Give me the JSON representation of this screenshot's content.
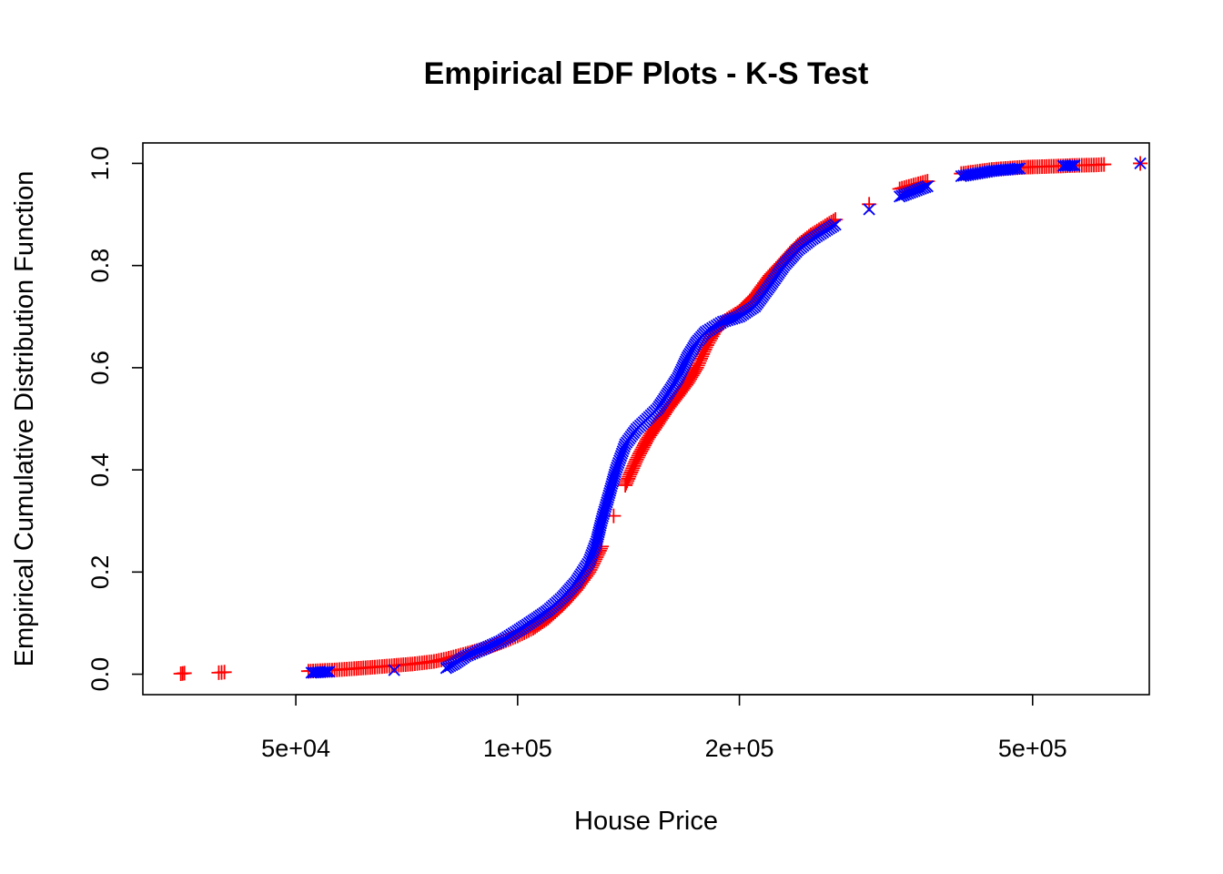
{
  "chart_data": {
    "type": "scatter",
    "title": "Empirical EDF Plots - K-S Test",
    "xlabel": "House Price",
    "ylabel": "Empirical Cumulative Distribution Function",
    "x_scale": "log",
    "xlim": [
      31000,
      720000
    ],
    "ylim": [
      -0.04,
      1.04
    ],
    "x_ticks": [
      {
        "value": 50000,
        "label": "5e+04"
      },
      {
        "value": 100000,
        "label": "1e+05"
      },
      {
        "value": 200000,
        "label": "2e+05"
      },
      {
        "value": 500000,
        "label": "5e+05"
      }
    ],
    "y_ticks": [
      {
        "value": 0.0,
        "label": "0.0"
      },
      {
        "value": 0.2,
        "label": "0.2"
      },
      {
        "value": 0.4,
        "label": "0.4"
      },
      {
        "value": 0.6,
        "label": "0.6"
      },
      {
        "value": 0.8,
        "label": "0.8"
      },
      {
        "value": 1.0,
        "label": "1.0"
      }
    ],
    "grid": false,
    "legend": "none",
    "series": [
      {
        "marker": "plus",
        "color": "#ff0000",
        "curve": [
          [
            34900,
            0.001
          ],
          [
            35300,
            0.002
          ],
          [
            39300,
            0.003
          ],
          [
            40000,
            0.004
          ],
          [
            52000,
            0.006
          ],
          [
            56000,
            0.008
          ],
          [
            60000,
            0.011
          ],
          [
            64000,
            0.014
          ],
          [
            68000,
            0.017
          ],
          [
            72000,
            0.02
          ],
          [
            77000,
            0.025
          ],
          [
            80000,
            0.03
          ],
          [
            85000,
            0.04
          ],
          [
            90000,
            0.05
          ],
          [
            95000,
            0.062
          ],
          [
            100000,
            0.075
          ],
          [
            105000,
            0.09
          ],
          [
            110000,
            0.11
          ],
          [
            115000,
            0.135
          ],
          [
            120000,
            0.165
          ],
          [
            125000,
            0.2
          ],
          [
            130000,
            0.25
          ],
          [
            135000,
            0.31
          ],
          [
            140000,
            0.37
          ],
          [
            145000,
            0.42
          ],
          [
            150000,
            0.46
          ],
          [
            155000,
            0.49
          ],
          [
            160000,
            0.52
          ],
          [
            165000,
            0.545
          ],
          [
            170000,
            0.57
          ],
          [
            175000,
            0.6
          ],
          [
            180000,
            0.64
          ],
          [
            185000,
            0.67
          ],
          [
            190000,
            0.69
          ],
          [
            200000,
            0.71
          ],
          [
            210000,
            0.74
          ],
          [
            220000,
            0.78
          ],
          [
            230000,
            0.81
          ],
          [
            240000,
            0.84
          ],
          [
            250000,
            0.86
          ],
          [
            270000,
            0.89
          ],
          [
            300000,
            0.92
          ],
          [
            330000,
            0.95
          ],
          [
            360000,
            0.965
          ],
          [
            400000,
            0.98
          ],
          [
            440000,
            0.988
          ],
          [
            480000,
            0.992
          ],
          [
            500000,
            0.993
          ],
          [
            550000,
            0.995
          ],
          [
            570000,
            0.996
          ],
          [
            610000,
            0.997
          ],
          [
            625000,
            0.998
          ],
          [
            700000,
            1.0
          ]
        ]
      },
      {
        "marker": "cross",
        "color": "#0000ff",
        "curve": [
          [
            52500,
            0.003
          ],
          [
            55500,
            0.005
          ],
          [
            68000,
            0.008
          ],
          [
            80000,
            0.012
          ],
          [
            82000,
            0.02
          ],
          [
            85000,
            0.035
          ],
          [
            90000,
            0.05
          ],
          [
            95000,
            0.065
          ],
          [
            100000,
            0.085
          ],
          [
            105000,
            0.105
          ],
          [
            110000,
            0.125
          ],
          [
            115000,
            0.15
          ],
          [
            120000,
            0.18
          ],
          [
            125000,
            0.22
          ],
          [
            128000,
            0.26
          ],
          [
            130000,
            0.3
          ],
          [
            133000,
            0.35
          ],
          [
            136000,
            0.4
          ],
          [
            140000,
            0.45
          ],
          [
            145000,
            0.48
          ],
          [
            150000,
            0.5
          ],
          [
            155000,
            0.52
          ],
          [
            160000,
            0.55
          ],
          [
            165000,
            0.58
          ],
          [
            170000,
            0.62
          ],
          [
            175000,
            0.65
          ],
          [
            180000,
            0.67
          ],
          [
            190000,
            0.69
          ],
          [
            200000,
            0.7
          ],
          [
            210000,
            0.72
          ],
          [
            220000,
            0.76
          ],
          [
            230000,
            0.8
          ],
          [
            240000,
            0.83
          ],
          [
            250000,
            0.85
          ],
          [
            270000,
            0.88
          ],
          [
            300000,
            0.91
          ],
          [
            330000,
            0.935
          ],
          [
            360000,
            0.955
          ],
          [
            400000,
            0.975
          ],
          [
            440000,
            0.985
          ],
          [
            480000,
            0.99
          ],
          [
            550000,
            0.995
          ],
          [
            570000,
            0.996
          ],
          [
            700000,
            1.0
          ]
        ]
      }
    ]
  }
}
